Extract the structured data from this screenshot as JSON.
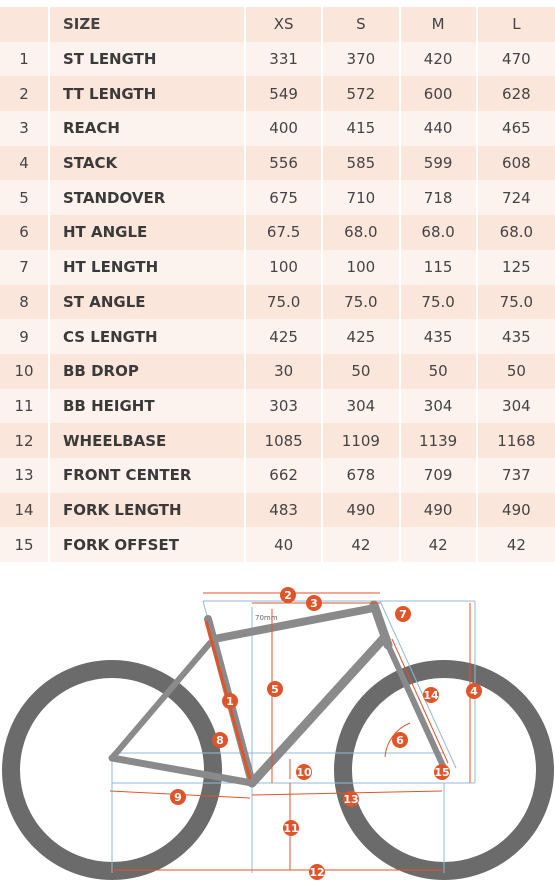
{
  "table": {
    "header": {
      "index": "",
      "label": "SIZE",
      "sizes": [
        "XS",
        "S",
        "M",
        "L"
      ]
    },
    "rows": [
      {
        "index": "1",
        "label": "ST LENGTH",
        "values": [
          "331",
          "370",
          "420",
          "470"
        ]
      },
      {
        "index": "2",
        "label": "TT LENGTH",
        "values": [
          "549",
          "572",
          "600",
          "628"
        ]
      },
      {
        "index": "3",
        "label": "REACH",
        "values": [
          "400",
          "415",
          "440",
          "465"
        ]
      },
      {
        "index": "4",
        "label": "STACK",
        "values": [
          "556",
          "585",
          "599",
          "608"
        ]
      },
      {
        "index": "5",
        "label": "STANDOVER",
        "values": [
          "675",
          "710",
          "718",
          "724"
        ]
      },
      {
        "index": "6",
        "label": "HT ANGLE",
        "values": [
          "67.5",
          "68.0",
          "68.0",
          "68.0"
        ]
      },
      {
        "index": "7",
        "label": "HT LENGTH",
        "values": [
          "100",
          "100",
          "115",
          "125"
        ]
      },
      {
        "index": "8",
        "label": "ST ANGLE",
        "values": [
          "75.0",
          "75.0",
          "75.0",
          "75.0"
        ]
      },
      {
        "index": "9",
        "label": "CS LENGTH",
        "values": [
          "425",
          "425",
          "435",
          "435"
        ]
      },
      {
        "index": "10",
        "label": "BB DROP",
        "values": [
          "30",
          "50",
          "50",
          "50"
        ]
      },
      {
        "index": "11",
        "label": "BB HEIGHT",
        "values": [
          "303",
          "304",
          "304",
          "304"
        ]
      },
      {
        "index": "12",
        "label": "WHEELBASE",
        "values": [
          "1085",
          "1109",
          "1139",
          "1168"
        ]
      },
      {
        "index": "13",
        "label": "FRONT CENTER",
        "values": [
          "662",
          "678",
          "709",
          "737"
        ]
      },
      {
        "index": "14",
        "label": "FORK LENGTH",
        "values": [
          "483",
          "490",
          "490",
          "490"
        ]
      },
      {
        "index": "15",
        "label": "FORK OFFSET",
        "values": [
          "40",
          "42",
          "42",
          "42"
        ]
      }
    ]
  },
  "diagram": {
    "standover_note": "70mm",
    "badges": [
      "1",
      "2",
      "3",
      "4",
      "5",
      "6",
      "7",
      "8",
      "9",
      "10",
      "11",
      "12",
      "13",
      "14",
      "15"
    ],
    "colors": {
      "accent": "#e0542a",
      "tire": "#6b6b6b",
      "frame": "#8a8a8a",
      "guide": "#8fb8d8",
      "row_odd": "#fbe6dc",
      "row_even": "#fdf3ee"
    }
  }
}
